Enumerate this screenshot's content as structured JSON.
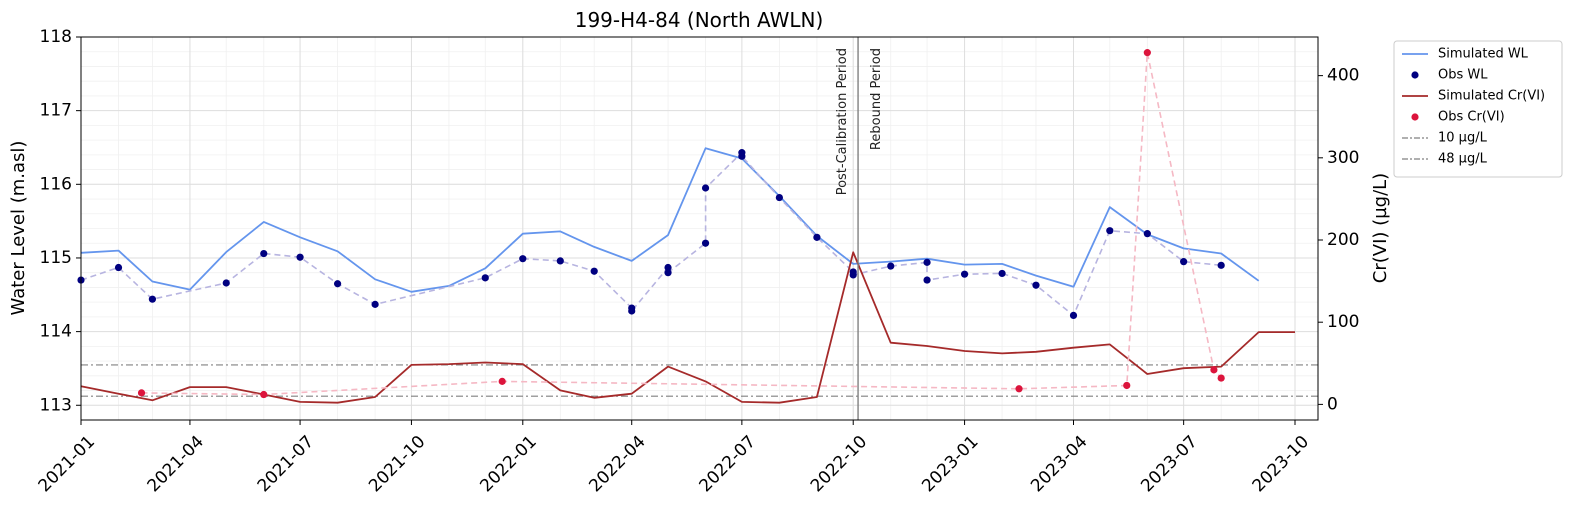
{
  "chart_data": {
    "type": "line",
    "title": "199-H4-84 (North AWLN)",
    "title_color": "#00008b",
    "xlabel": "",
    "ylabel_left": "Water Level (m.asl)",
    "ylabel_right": "Cr(VI) (µg/L)",
    "x_axis": {
      "type": "date",
      "range": [
        "2021-01-01",
        "2023-10-20"
      ],
      "ticks": [
        "2021-01-01",
        "2021-04-01",
        "2021-07-01",
        "2021-10-01",
        "2022-01-01",
        "2022-04-01",
        "2022-07-01",
        "2022-10-01",
        "2023-01-01",
        "2023-04-01",
        "2023-07-01",
        "2023-10-01"
      ],
      "tick_labels": [
        "2021-01",
        "2021-04",
        "2021-07",
        "2021-10",
        "2022-01",
        "2022-04",
        "2022-07",
        "2022-10",
        "2023-01",
        "2023-04",
        "2023-07",
        "2023-10"
      ]
    },
    "ylim_left": [
      112.8,
      118.0
    ],
    "yticks_left": [
      113,
      114,
      115,
      116,
      117,
      118
    ],
    "ylim_right": [
      -19,
      447
    ],
    "yticks_right": [
      0,
      100,
      200,
      300,
      400
    ],
    "grid": true,
    "legend_position": "outside-top-right",
    "legend": [
      {
        "label": "Simulated WL",
        "style": "line",
        "color": "#6495ed"
      },
      {
        "label": "Obs WL",
        "style": "marker",
        "color": "#000080"
      },
      {
        "label": "Simulated Cr(VI)",
        "style": "line",
        "color": "#a52a2a"
      },
      {
        "label": "Obs Cr(VI)",
        "style": "marker",
        "color": "#dc143c"
      },
      {
        "label": "10 µg/L",
        "style": "dashdot",
        "color": "#808080"
      },
      {
        "label": "48 µg/L",
        "style": "dashdot",
        "color": "#808080"
      }
    ],
    "series": [
      {
        "name": "Simulated WL",
        "axis": "left",
        "style": "line",
        "color": "#6495ed",
        "points": [
          [
            "2021-01-01",
            115.07
          ],
          [
            "2021-02-01",
            115.1
          ],
          [
            "2021-03-01",
            114.68
          ],
          [
            "2021-04-01",
            114.57
          ],
          [
            "2021-05-01",
            115.08
          ],
          [
            "2021-06-01",
            115.49
          ],
          [
            "2021-07-01",
            115.28
          ],
          [
            "2021-08-01",
            115.09
          ],
          [
            "2021-09-01",
            114.71
          ],
          [
            "2021-10-01",
            114.54
          ],
          [
            "2021-11-01",
            114.62
          ],
          [
            "2021-12-01",
            114.86
          ],
          [
            "2022-01-01",
            115.33
          ],
          [
            "2022-02-01",
            115.36
          ],
          [
            "2022-03-01",
            115.15
          ],
          [
            "2022-04-01",
            114.96
          ],
          [
            "2022-05-01",
            115.31
          ],
          [
            "2022-06-01",
            116.49
          ],
          [
            "2022-07-01",
            116.35
          ],
          [
            "2022-08-01",
            115.84
          ],
          [
            "2022-09-01",
            115.3
          ],
          [
            "2022-10-01",
            114.92
          ],
          [
            "2022-11-01",
            114.95
          ],
          [
            "2022-12-01",
            114.99
          ],
          [
            "2023-01-01",
            114.91
          ],
          [
            "2023-02-01",
            114.92
          ],
          [
            "2023-03-01",
            114.76
          ],
          [
            "2023-04-01",
            114.61
          ],
          [
            "2023-05-01",
            115.69
          ],
          [
            "2023-06-01",
            115.32
          ],
          [
            "2023-07-01",
            115.13
          ],
          [
            "2023-08-01",
            115.06
          ],
          [
            "2023-09-01",
            114.69
          ]
        ]
      },
      {
        "name": "Obs WL",
        "axis": "left",
        "style": "marker-dashed",
        "color": "#000080",
        "line_color": "#b7b4e0",
        "points": [
          [
            "2021-01-01",
            114.7
          ],
          [
            "2021-02-01",
            114.87
          ],
          [
            "2021-03-01",
            114.44
          ],
          [
            "2021-05-01",
            114.66
          ],
          [
            "2021-06-01",
            115.06
          ],
          [
            "2021-07-01",
            115.01
          ],
          [
            "2021-08-01",
            114.65
          ],
          [
            "2021-09-01",
            114.37
          ],
          [
            "2021-12-01",
            114.73
          ],
          [
            "2022-01-01",
            114.99
          ],
          [
            "2022-02-01",
            114.96
          ],
          [
            "2022-03-01",
            114.82
          ],
          [
            "2022-04-01",
            114.32
          ],
          [
            "2022-04-01",
            114.28
          ],
          [
            "2022-05-01",
            114.87
          ],
          [
            "2022-05-01",
            114.8
          ],
          [
            "2022-06-01",
            115.2
          ],
          [
            "2022-06-01",
            115.95
          ],
          [
            "2022-07-01",
            116.43
          ],
          [
            "2022-07-01",
            116.38
          ],
          [
            "2022-08-01",
            115.82
          ],
          [
            "2022-09-01",
            115.28
          ],
          [
            "2022-10-01",
            114.81
          ],
          [
            "2022-10-01",
            114.77
          ],
          [
            "2022-11-01",
            114.89
          ],
          [
            "2022-12-01",
            114.94
          ],
          [
            "2022-12-01",
            114.7
          ],
          [
            "2023-01-01",
            114.78
          ],
          [
            "2023-02-01",
            114.79
          ],
          [
            "2023-03-01",
            114.63
          ],
          [
            "2023-04-01",
            114.22
          ],
          [
            "2023-05-01",
            115.37
          ],
          [
            "2023-06-01",
            115.33
          ],
          [
            "2023-07-01",
            114.95
          ],
          [
            "2023-08-01",
            114.9
          ]
        ]
      },
      {
        "name": "Simulated Cr(VI)",
        "axis": "right",
        "style": "line",
        "color": "#a52a2a",
        "points": [
          [
            "2021-01-01",
            22
          ],
          [
            "2021-02-01",
            13
          ],
          [
            "2021-03-01",
            5
          ],
          [
            "2021-04-01",
            21
          ],
          [
            "2021-05-01",
            21
          ],
          [
            "2021-06-01",
            12
          ],
          [
            "2021-07-01",
            3
          ],
          [
            "2021-08-01",
            2
          ],
          [
            "2021-09-01",
            9
          ],
          [
            "2021-10-01",
            48
          ],
          [
            "2021-11-01",
            49
          ],
          [
            "2021-12-01",
            51
          ],
          [
            "2022-01-01",
            49
          ],
          [
            "2022-02-01",
            17
          ],
          [
            "2022-03-01",
            8
          ],
          [
            "2022-04-01",
            13
          ],
          [
            "2022-05-01",
            46
          ],
          [
            "2022-06-01",
            28
          ],
          [
            "2022-07-01",
            3
          ],
          [
            "2022-08-01",
            2
          ],
          [
            "2022-09-01",
            9
          ],
          [
            "2022-10-01",
            185
          ],
          [
            "2022-11-01",
            75
          ],
          [
            "2022-12-01",
            71
          ],
          [
            "2023-01-01",
            65
          ],
          [
            "2023-02-01",
            62
          ],
          [
            "2023-03-01",
            64
          ],
          [
            "2023-04-01",
            69
          ],
          [
            "2023-05-01",
            73
          ],
          [
            "2023-06-01",
            37
          ],
          [
            "2023-07-01",
            44
          ],
          [
            "2023-08-01",
            46
          ],
          [
            "2023-09-01",
            88
          ],
          [
            "2023-10-01",
            88
          ]
        ]
      },
      {
        "name": "Obs Cr(VI)",
        "axis": "right",
        "style": "marker-dashed",
        "color": "#dc143c",
        "line_color": "#f5b8c4",
        "points": [
          [
            "2021-02-20",
            14
          ],
          [
            "2021-06-01",
            12
          ],
          [
            "2021-12-15",
            28
          ],
          [
            "2023-02-15",
            19
          ],
          [
            "2023-05-15",
            23
          ],
          [
            "2023-06-01",
            428
          ],
          [
            "2023-07-26",
            42
          ],
          [
            "2023-08-01",
            32
          ]
        ]
      }
    ],
    "threshold_lines": [
      {
        "label": "10 µg/L",
        "axis": "right",
        "value": 10,
        "color": "#808080"
      },
      {
        "label": "48 µg/L",
        "axis": "right",
        "value": 48,
        "color": "#808080"
      }
    ],
    "period_marker": {
      "date": "2022-10-05",
      "left_label": "Post-Calibration Period",
      "right_label": "Rebound Period"
    }
  }
}
